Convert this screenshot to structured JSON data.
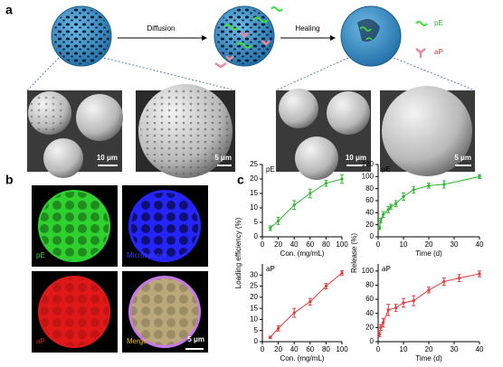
{
  "panel_labels": [
    "a",
    "b",
    "c"
  ],
  "panel_a": {
    "steps": [
      "Diffusion",
      "Healing"
    ],
    "legend": [
      "pE",
      "aP"
    ],
    "scale_bars": [
      "10 μm",
      "5 μm",
      "10 μm",
      "5 μm"
    ]
  },
  "panel_b": {
    "channels": [
      "pE",
      "Microsphere",
      "aP",
      "Merge"
    ],
    "scale_bar": "5 μm"
  },
  "chart_data": [
    {
      "type": "line",
      "annotation": "pE",
      "ylabel": "Loading efficiency (%)",
      "xlabel": "Con. (mg/mL)",
      "color": "#2fb52f",
      "x": [
        10,
        20,
        40,
        60,
        80,
        100
      ],
      "values": [
        3,
        5.5,
        11,
        15,
        18.5,
        20
      ],
      "errors": [
        0.8,
        1.2,
        1.5,
        1.5,
        1,
        1.5
      ],
      "xlim": [
        0,
        100
      ],
      "xticks": [
        0,
        20,
        40,
        60,
        80,
        100
      ],
      "ylim": [
        0,
        25
      ],
      "yticks": [
        0,
        5,
        10,
        15,
        20,
        25
      ]
    },
    {
      "type": "line",
      "annotation": "pE",
      "ylabel": "Release (%)",
      "xlabel": "Time (d)",
      "color": "#2fb52f",
      "x": [
        0.5,
        1,
        2,
        4,
        5,
        7,
        10,
        14,
        20,
        26,
        40
      ],
      "values": [
        15,
        27,
        37,
        45,
        50,
        55,
        67,
        78,
        85,
        87,
        100
      ],
      "errors": [
        3,
        4,
        5,
        5,
        4,
        5,
        6,
        5,
        4,
        6,
        3
      ],
      "xlim": [
        0,
        40
      ],
      "xticks": [
        0,
        10,
        20,
        30,
        40
      ],
      "ylim": [
        0,
        120
      ],
      "yticks": [
        0,
        20,
        40,
        60,
        80,
        100,
        120
      ]
    },
    {
      "type": "line",
      "annotation": "aP",
      "xlabel": "Con. (mg/mL)",
      "color": "#e8383b",
      "x": [
        10,
        20,
        40,
        60,
        80,
        100
      ],
      "values": [
        2,
        6,
        13,
        18,
        25,
        31
      ],
      "errors": [
        0.5,
        1.2,
        2,
        1.5,
        1.2,
        1
      ],
      "xlim": [
        0,
        100
      ],
      "xticks": [
        0,
        20,
        40,
        60,
        80,
        100
      ],
      "ylim": [
        0,
        35
      ],
      "yticks": [
        0,
        5,
        10,
        15,
        20,
        25,
        30
      ]
    },
    {
      "type": "line",
      "annotation": "aP",
      "xlabel": "Time (d)",
      "color": "#e8383b",
      "x": [
        0.5,
        1,
        2,
        4,
        7,
        10,
        14,
        20,
        26,
        32,
        40
      ],
      "values": [
        10,
        20,
        27,
        45,
        48,
        55,
        58,
        73,
        85,
        90,
        96
      ],
      "errors": [
        3,
        4,
        6,
        8,
        5,
        6,
        7,
        4,
        5,
        5,
        4
      ],
      "xlim": [
        0,
        40
      ],
      "xticks": [
        0,
        10,
        20,
        30,
        40
      ],
      "ylim": [
        0,
        110
      ],
      "yticks": [
        0,
        20,
        40,
        60,
        80,
        100
      ]
    }
  ]
}
